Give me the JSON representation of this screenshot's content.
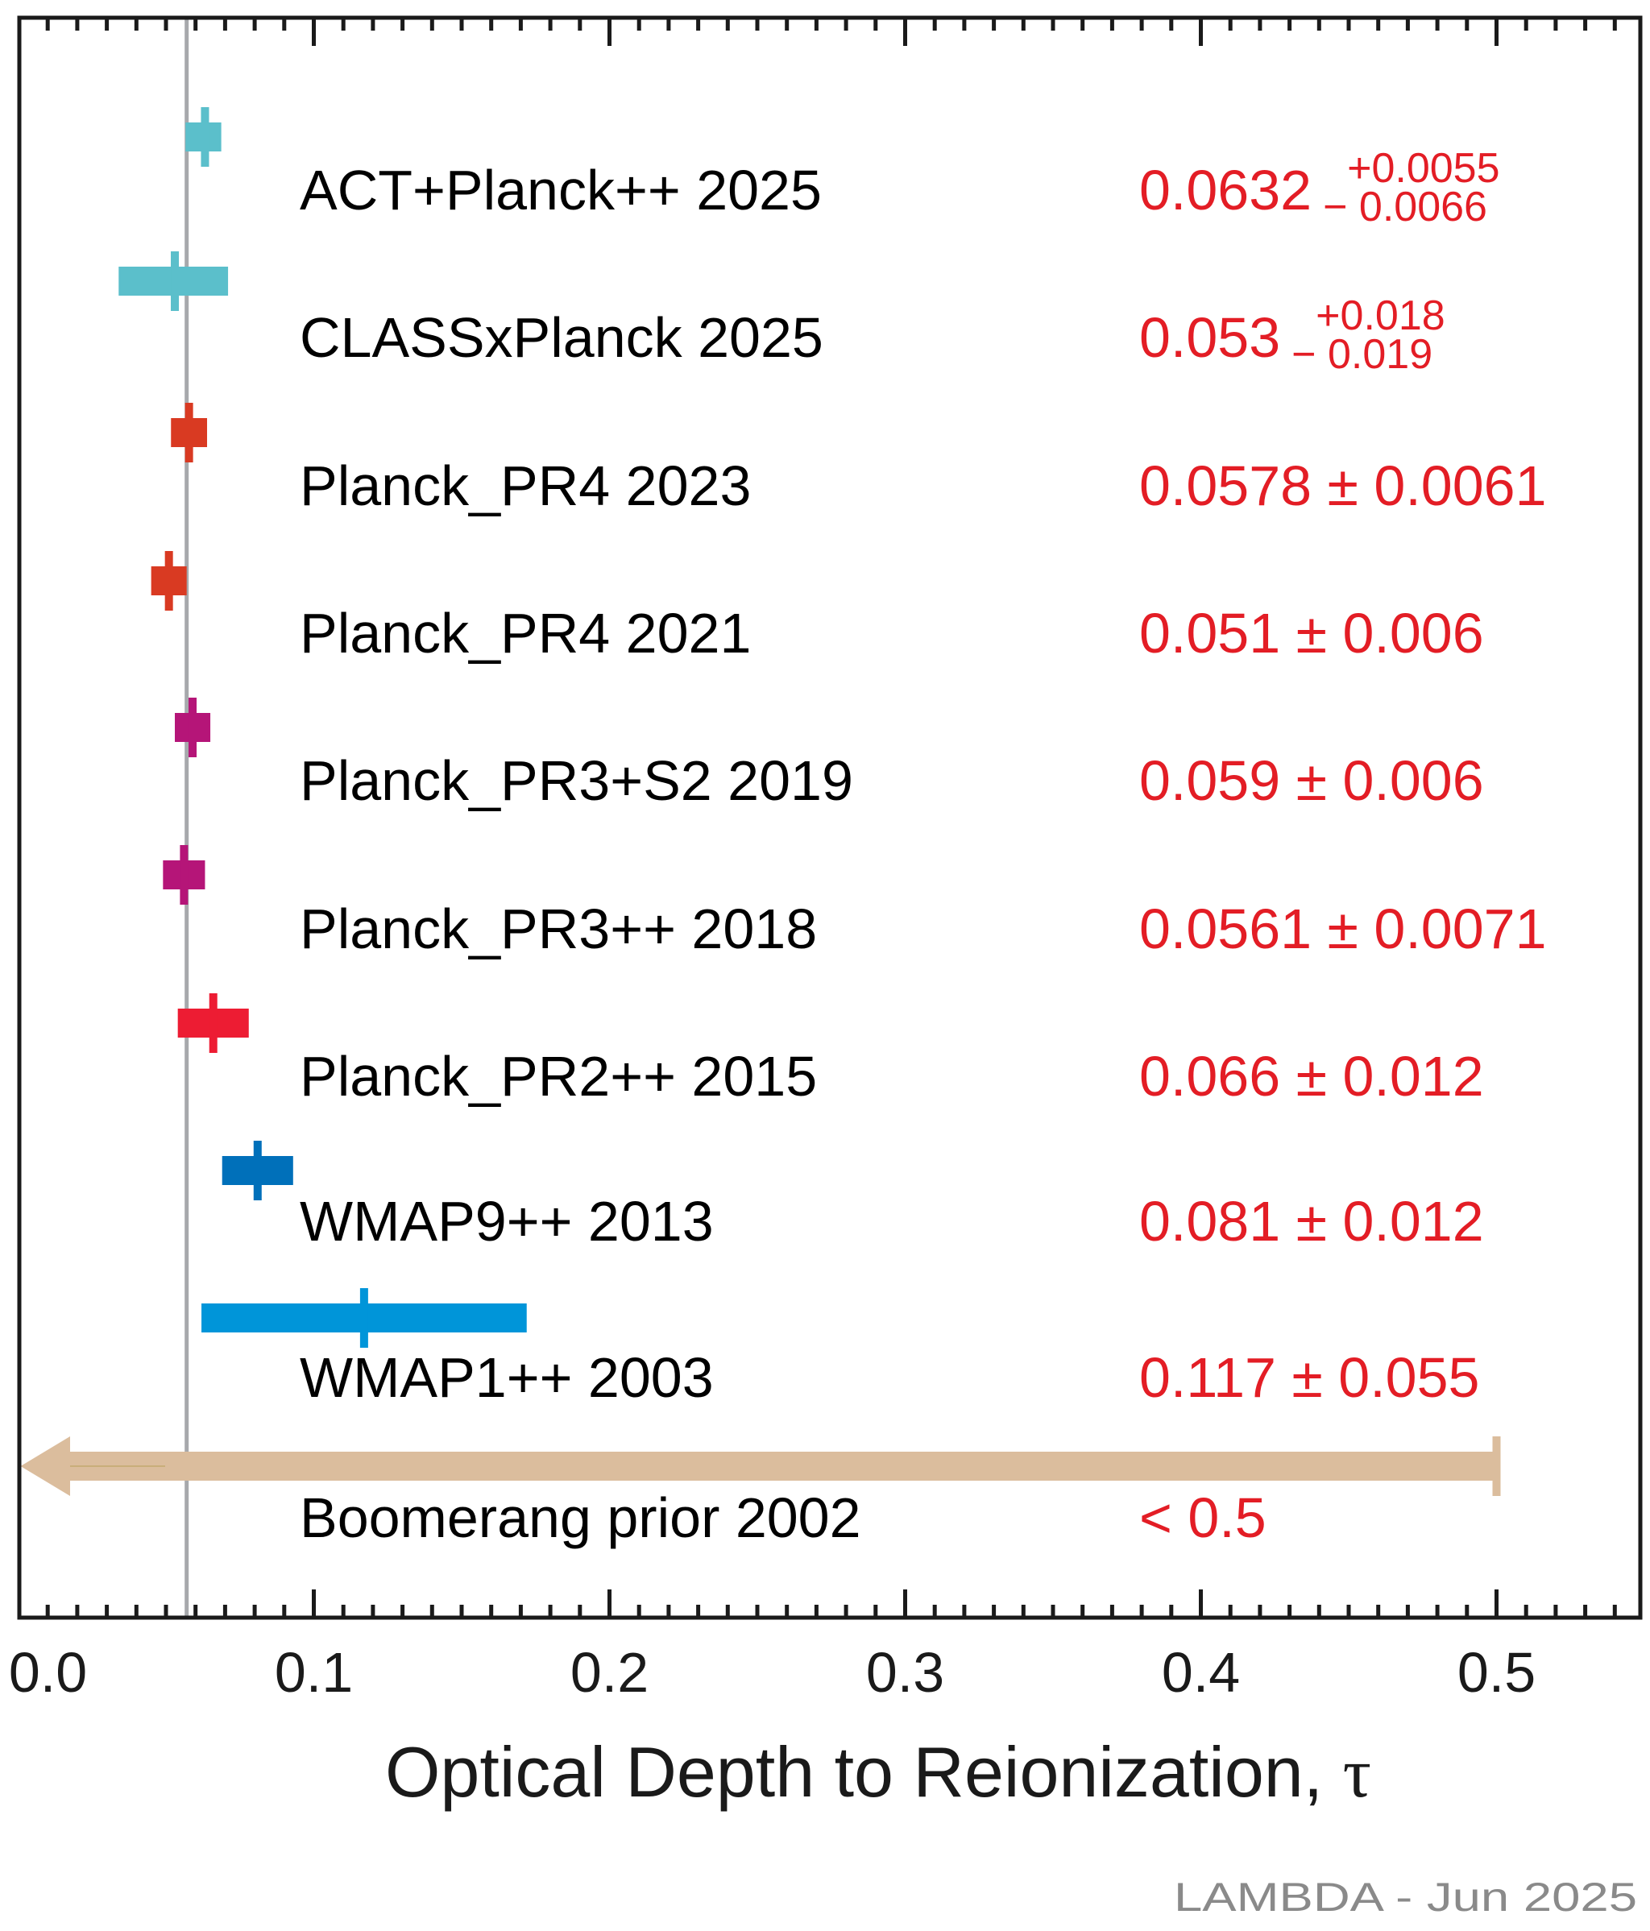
{
  "chart_data": {
    "type": "errorbar",
    "title": "",
    "xlabel": "Optical Depth to Reionization, ",
    "xlabel_symbol": "τ",
    "ylabel": "",
    "xlim": [
      0.0,
      0.55
    ],
    "x_ticks": [
      {
        "value": 0.0,
        "label": "0.0"
      },
      {
        "value": 0.1,
        "label": "0.1"
      },
      {
        "value": 0.2,
        "label": "0.2"
      },
      {
        "value": 0.3,
        "label": "0.3"
      },
      {
        "value": 0.4,
        "label": "0.4"
      },
      {
        "value": 0.5,
        "label": "0.5"
      }
    ],
    "minor_tick_step": 0.01,
    "grid": false,
    "reference_line": {
      "value": 0.057,
      "color": "#a7a9ac"
    },
    "series": [
      {
        "name": "ACT+Planck++ 2025",
        "value": 0.0632,
        "err_plus": 0.0055,
        "err_minus": 0.0066,
        "color": "#5bbfcb",
        "value_text": "0.0632",
        "err_plus_text": "+0.0055",
        "err_minus_text": "− 0.0066",
        "asymmetric": true
      },
      {
        "name": "CLASSxPlanck 2025",
        "value": 0.053,
        "err_plus": 0.018,
        "err_minus": 0.019,
        "color": "#5bbfcb",
        "value_text": "0.053",
        "err_plus_text": "+0.018",
        "err_minus_text": "− 0.019",
        "asymmetric": true
      },
      {
        "name": "Planck_PR4 2023",
        "value": 0.0578,
        "err_plus": 0.0061,
        "err_minus": 0.0061,
        "color": "#d93a22",
        "value_text": "0.0578 ± 0.0061",
        "asymmetric": false
      },
      {
        "name": "Planck_PR4 2021",
        "value": 0.051,
        "err_plus": 0.006,
        "err_minus": 0.006,
        "color": "#d93a22",
        "value_text": "0.051 ± 0.006",
        "asymmetric": false
      },
      {
        "name": "Planck_PR3+S2 2019",
        "value": 0.059,
        "err_plus": 0.006,
        "err_minus": 0.006,
        "color": "#b51578",
        "value_text": "0.059 ± 0.006",
        "asymmetric": false
      },
      {
        "name": "Planck_PR3++ 2018",
        "value": 0.0561,
        "err_plus": 0.0071,
        "err_minus": 0.0071,
        "color": "#b51578",
        "value_text": "0.0561 ± 0.0071",
        "asymmetric": false
      },
      {
        "name": "Planck_PR2++ 2015",
        "value": 0.066,
        "err_plus": 0.012,
        "err_minus": 0.012,
        "color": "#ed1c33",
        "value_text": "0.066 ± 0.012",
        "asymmetric": false
      },
      {
        "name": "WMAP9++ 2013",
        "value": 0.081,
        "err_plus": 0.012,
        "err_minus": 0.012,
        "color": "#0070ba",
        "value_text": "0.081 ± 0.012",
        "asymmetric": false
      },
      {
        "name": "WMAP1++ 2003",
        "value": 0.117,
        "err_plus": 0.055,
        "err_minus": 0.055,
        "color": "#0095d9",
        "value_text": "0.117 ± 0.055",
        "asymmetric": false
      }
    ],
    "upper_limit": {
      "name": "Boomerang prior 2002",
      "upper": 0.5,
      "color": "#dbbd9d",
      "value_text": "< 0.5"
    },
    "value_text_color": "#e31d25",
    "credit": "LAMBDA - Jun 2025"
  }
}
